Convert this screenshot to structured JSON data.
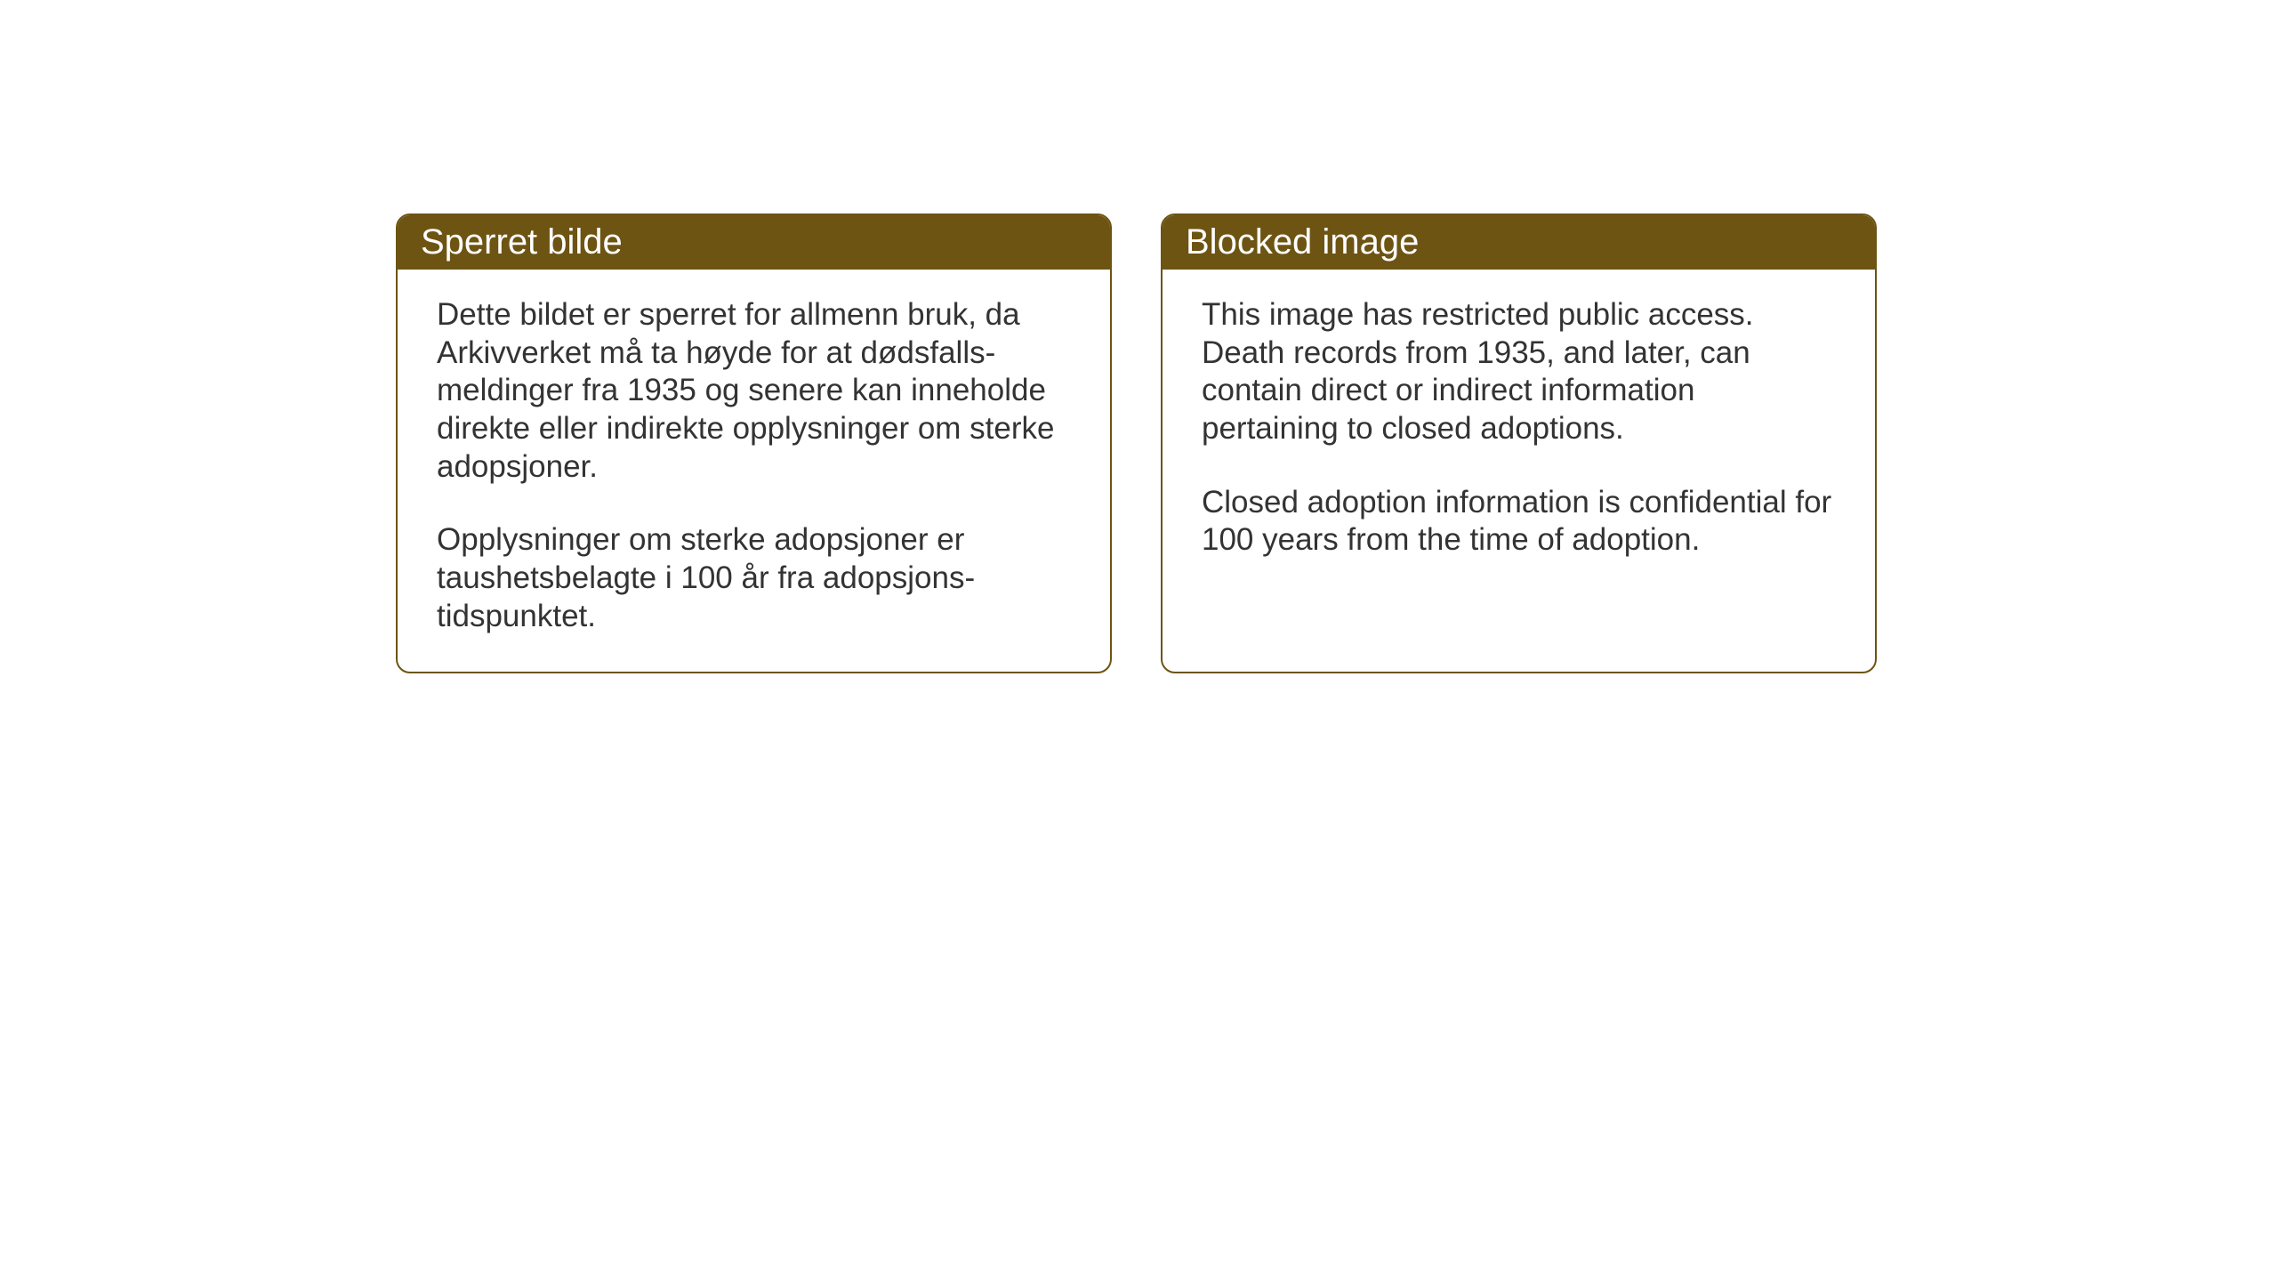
{
  "cards": [
    {
      "title": "Sperret bilde",
      "paragraph1": "Dette bildet er sperret for allmenn bruk, da Arkivverket må ta høyde for at dødsfalls-meldinger fra 1935 og senere kan inneholde direkte eller indirekte opplysninger om sterke adopsjoner.",
      "paragraph2": "Opplysninger om sterke adopsjoner er taushetsbelagte i 100 år fra adopsjons-tidspunktet."
    },
    {
      "title": "Blocked image",
      "paragraph1": "This image has restricted public access. Death records from 1935, and later, can contain direct or indirect information pertaining to closed adoptions.",
      "paragraph2": "Closed adoption information is confidential for 100 years from the time of adoption."
    }
  ],
  "styling": {
    "header_background_color": "#6d5413",
    "header_text_color": "#ffffff",
    "border_color": "#6d5413",
    "body_text_color": "#333333",
    "card_background_color": "#ffffff",
    "page_background_color": "#ffffff",
    "title_fontsize": 40,
    "body_fontsize": 35,
    "border_radius": 16,
    "border_width": 2
  }
}
